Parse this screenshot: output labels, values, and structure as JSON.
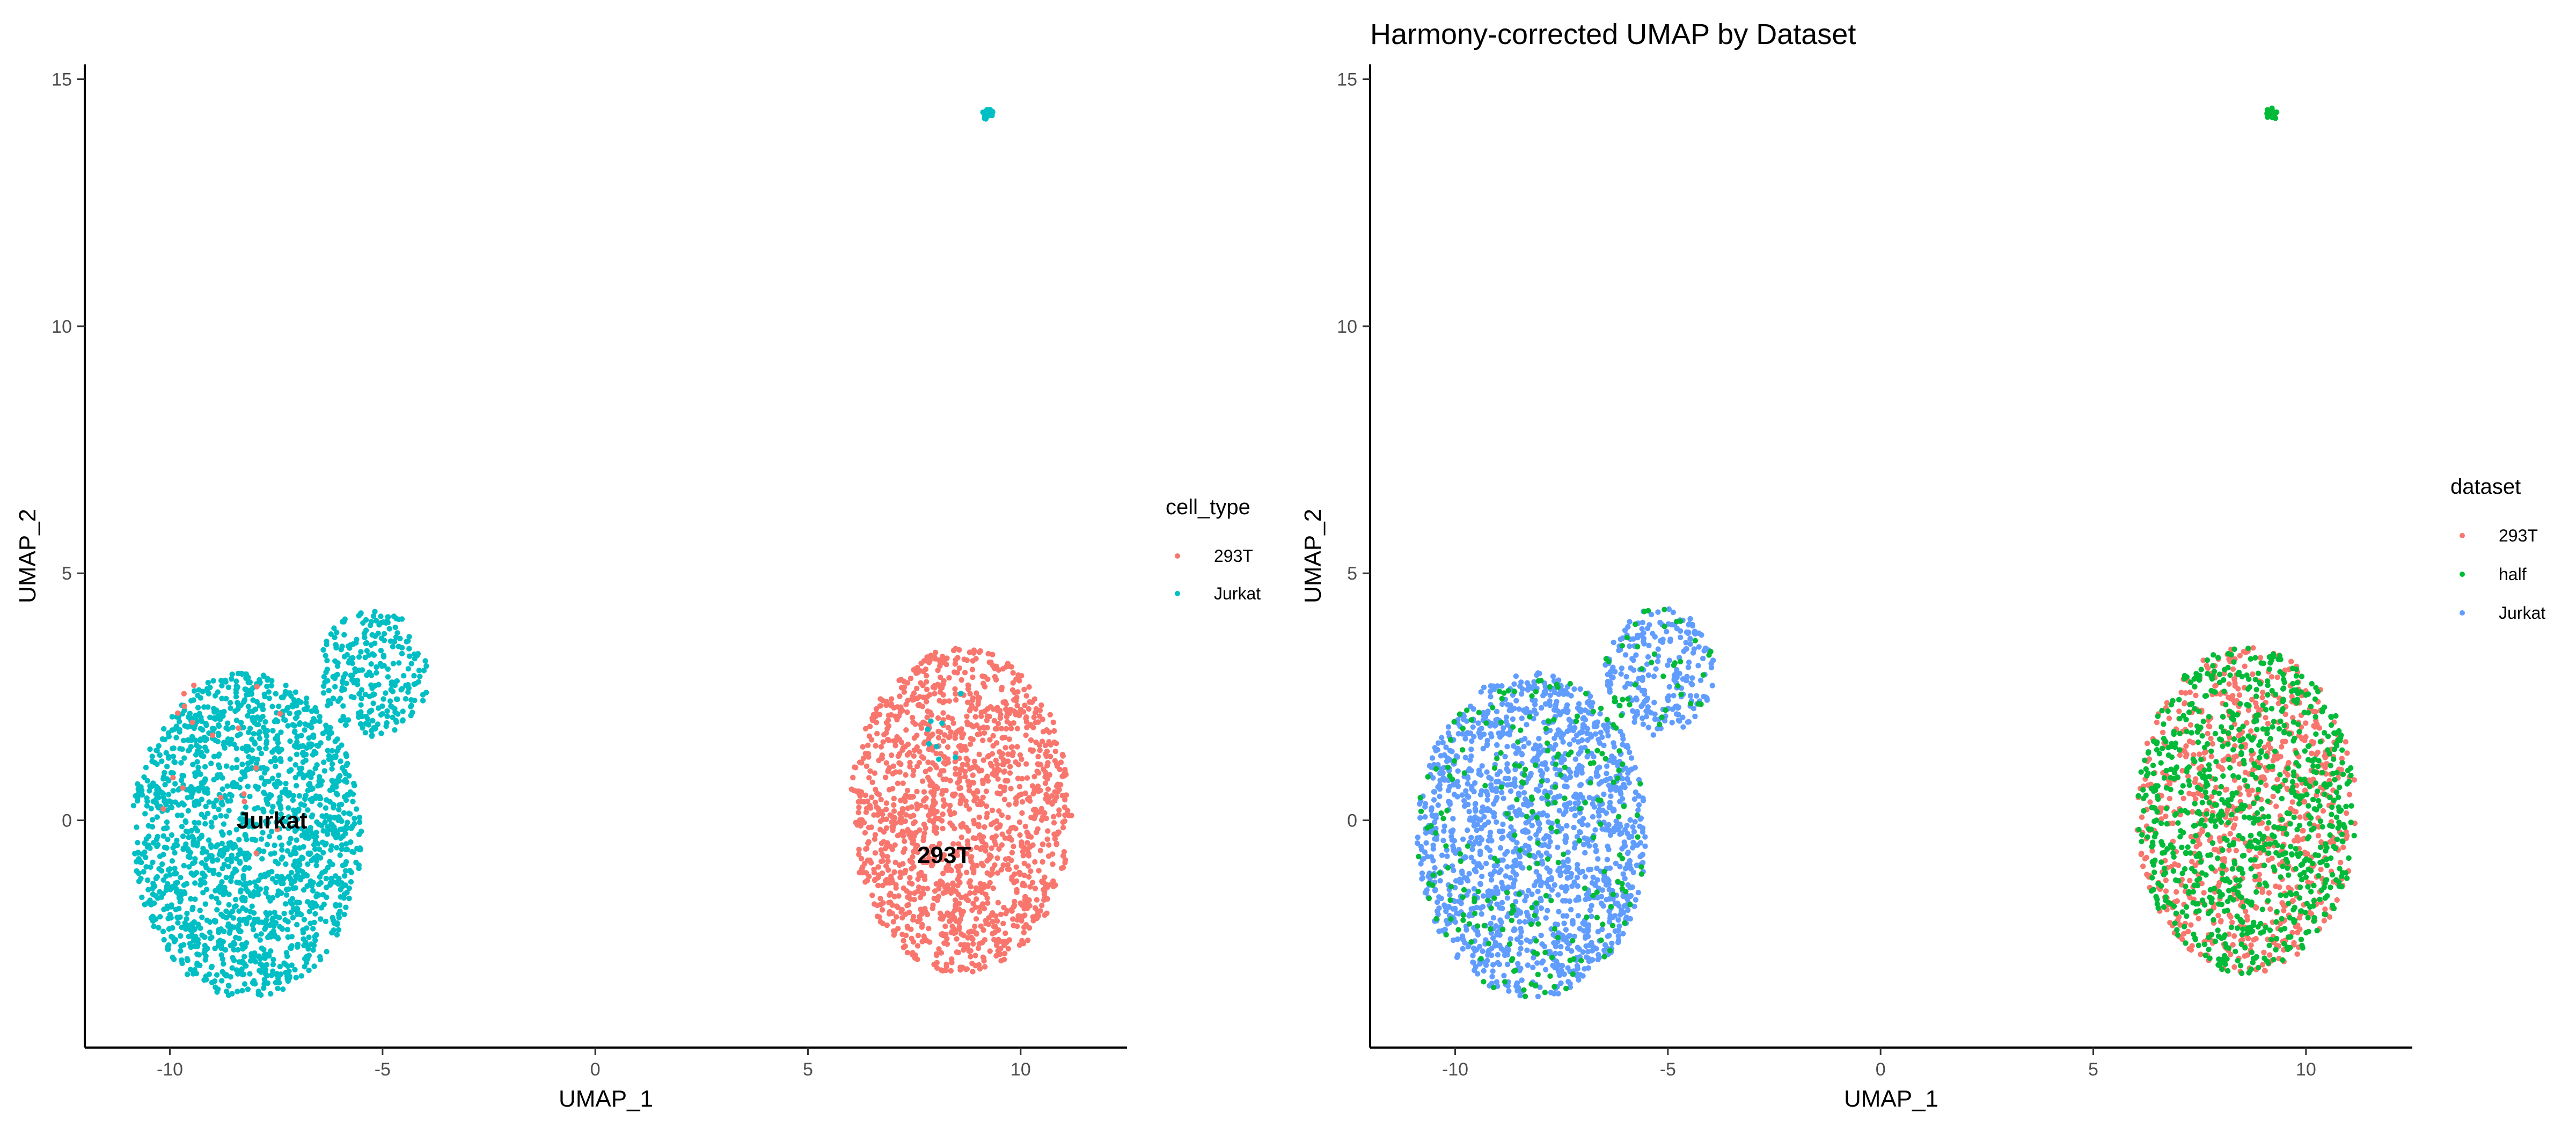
{
  "chart_data": [
    {
      "type": "scatter",
      "title": "",
      "xlabel": "UMAP_1",
      "ylabel": "UMAP_2",
      "xlim": [
        -12,
        12.5
      ],
      "ylim": [
        -4.6,
        15.3
      ],
      "xticks": [
        -10,
        -5,
        0,
        5,
        10
      ],
      "yticks": [
        0,
        5,
        10,
        15
      ],
      "grid": false,
      "legend": {
        "title": "cell_type",
        "position": "right"
      },
      "series": [
        {
          "name": "293T",
          "color": "#F8766D"
        },
        {
          "name": "Jurkat",
          "color": "#00BFC4"
        }
      ],
      "clusters": [
        {
          "series": "Jurkat",
          "cx": -8.2,
          "cy": -0.3,
          "rx": 2.7,
          "ry": 3.3,
          "n": 1700
        },
        {
          "series": "Jurkat",
          "cx": -5.2,
          "cy": 3.0,
          "rx": 1.3,
          "ry": 1.3,
          "n": 260
        },
        {
          "series": "Jurkat",
          "cx": 9.2,
          "cy": 14.3,
          "rx": 0.15,
          "ry": 0.12,
          "n": 18
        },
        {
          "series": "293T",
          "cx": 8.6,
          "cy": 0.2,
          "rx": 2.6,
          "ry": 3.3,
          "n": 1500
        },
        {
          "series": "293T",
          "cx": -8.8,
          "cy": 1.0,
          "rx": 1.8,
          "ry": 2.0,
          "n": 18
        },
        {
          "series": "Jurkat",
          "cx": 8.6,
          "cy": 1.8,
          "rx": 0.8,
          "ry": 1.2,
          "n": 8
        }
      ],
      "annotations": [
        {
          "text": "Jurkat",
          "x": -7.6,
          "y": 0.0
        },
        {
          "text": "293T",
          "x": 8.2,
          "y": -0.7
        }
      ]
    },
    {
      "type": "scatter",
      "title": "Harmony-corrected UMAP by Dataset",
      "xlabel": "UMAP_1",
      "ylabel": "UMAP_2",
      "xlim": [
        -12,
        12.5
      ],
      "ylim": [
        -4.6,
        15.3
      ],
      "xticks": [
        -10,
        -5,
        0,
        5,
        10
      ],
      "yticks": [
        0,
        5,
        10,
        15
      ],
      "grid": false,
      "legend": {
        "title": "dataset",
        "position": "right"
      },
      "series": [
        {
          "name": "293T",
          "color": "#F8766D"
        },
        {
          "name": "half",
          "color": "#00BA38"
        },
        {
          "name": "Jurkat",
          "color": "#619CFF"
        }
      ],
      "clusters": [
        {
          "series": "Jurkat",
          "cx": -8.2,
          "cy": -0.3,
          "rx": 2.7,
          "ry": 3.3,
          "n": 1500
        },
        {
          "series": "Jurkat",
          "cx": -5.2,
          "cy": 3.0,
          "rx": 1.3,
          "ry": 1.3,
          "n": 230
        },
        {
          "series": "half",
          "cx": -8.2,
          "cy": -0.3,
          "rx": 2.7,
          "ry": 3.3,
          "n": 230
        },
        {
          "series": "half",
          "cx": -5.2,
          "cy": 3.0,
          "rx": 1.3,
          "ry": 1.3,
          "n": 40
        },
        {
          "series": "half",
          "cx": 9.2,
          "cy": 14.3,
          "rx": 0.15,
          "ry": 0.12,
          "n": 18
        },
        {
          "series": "293T",
          "cx": 8.6,
          "cy": 0.2,
          "rx": 2.6,
          "ry": 3.3,
          "n": 800
        },
        {
          "series": "half",
          "cx": 8.6,
          "cy": 0.2,
          "rx": 2.6,
          "ry": 3.3,
          "n": 900
        }
      ],
      "annotations": []
    }
  ]
}
